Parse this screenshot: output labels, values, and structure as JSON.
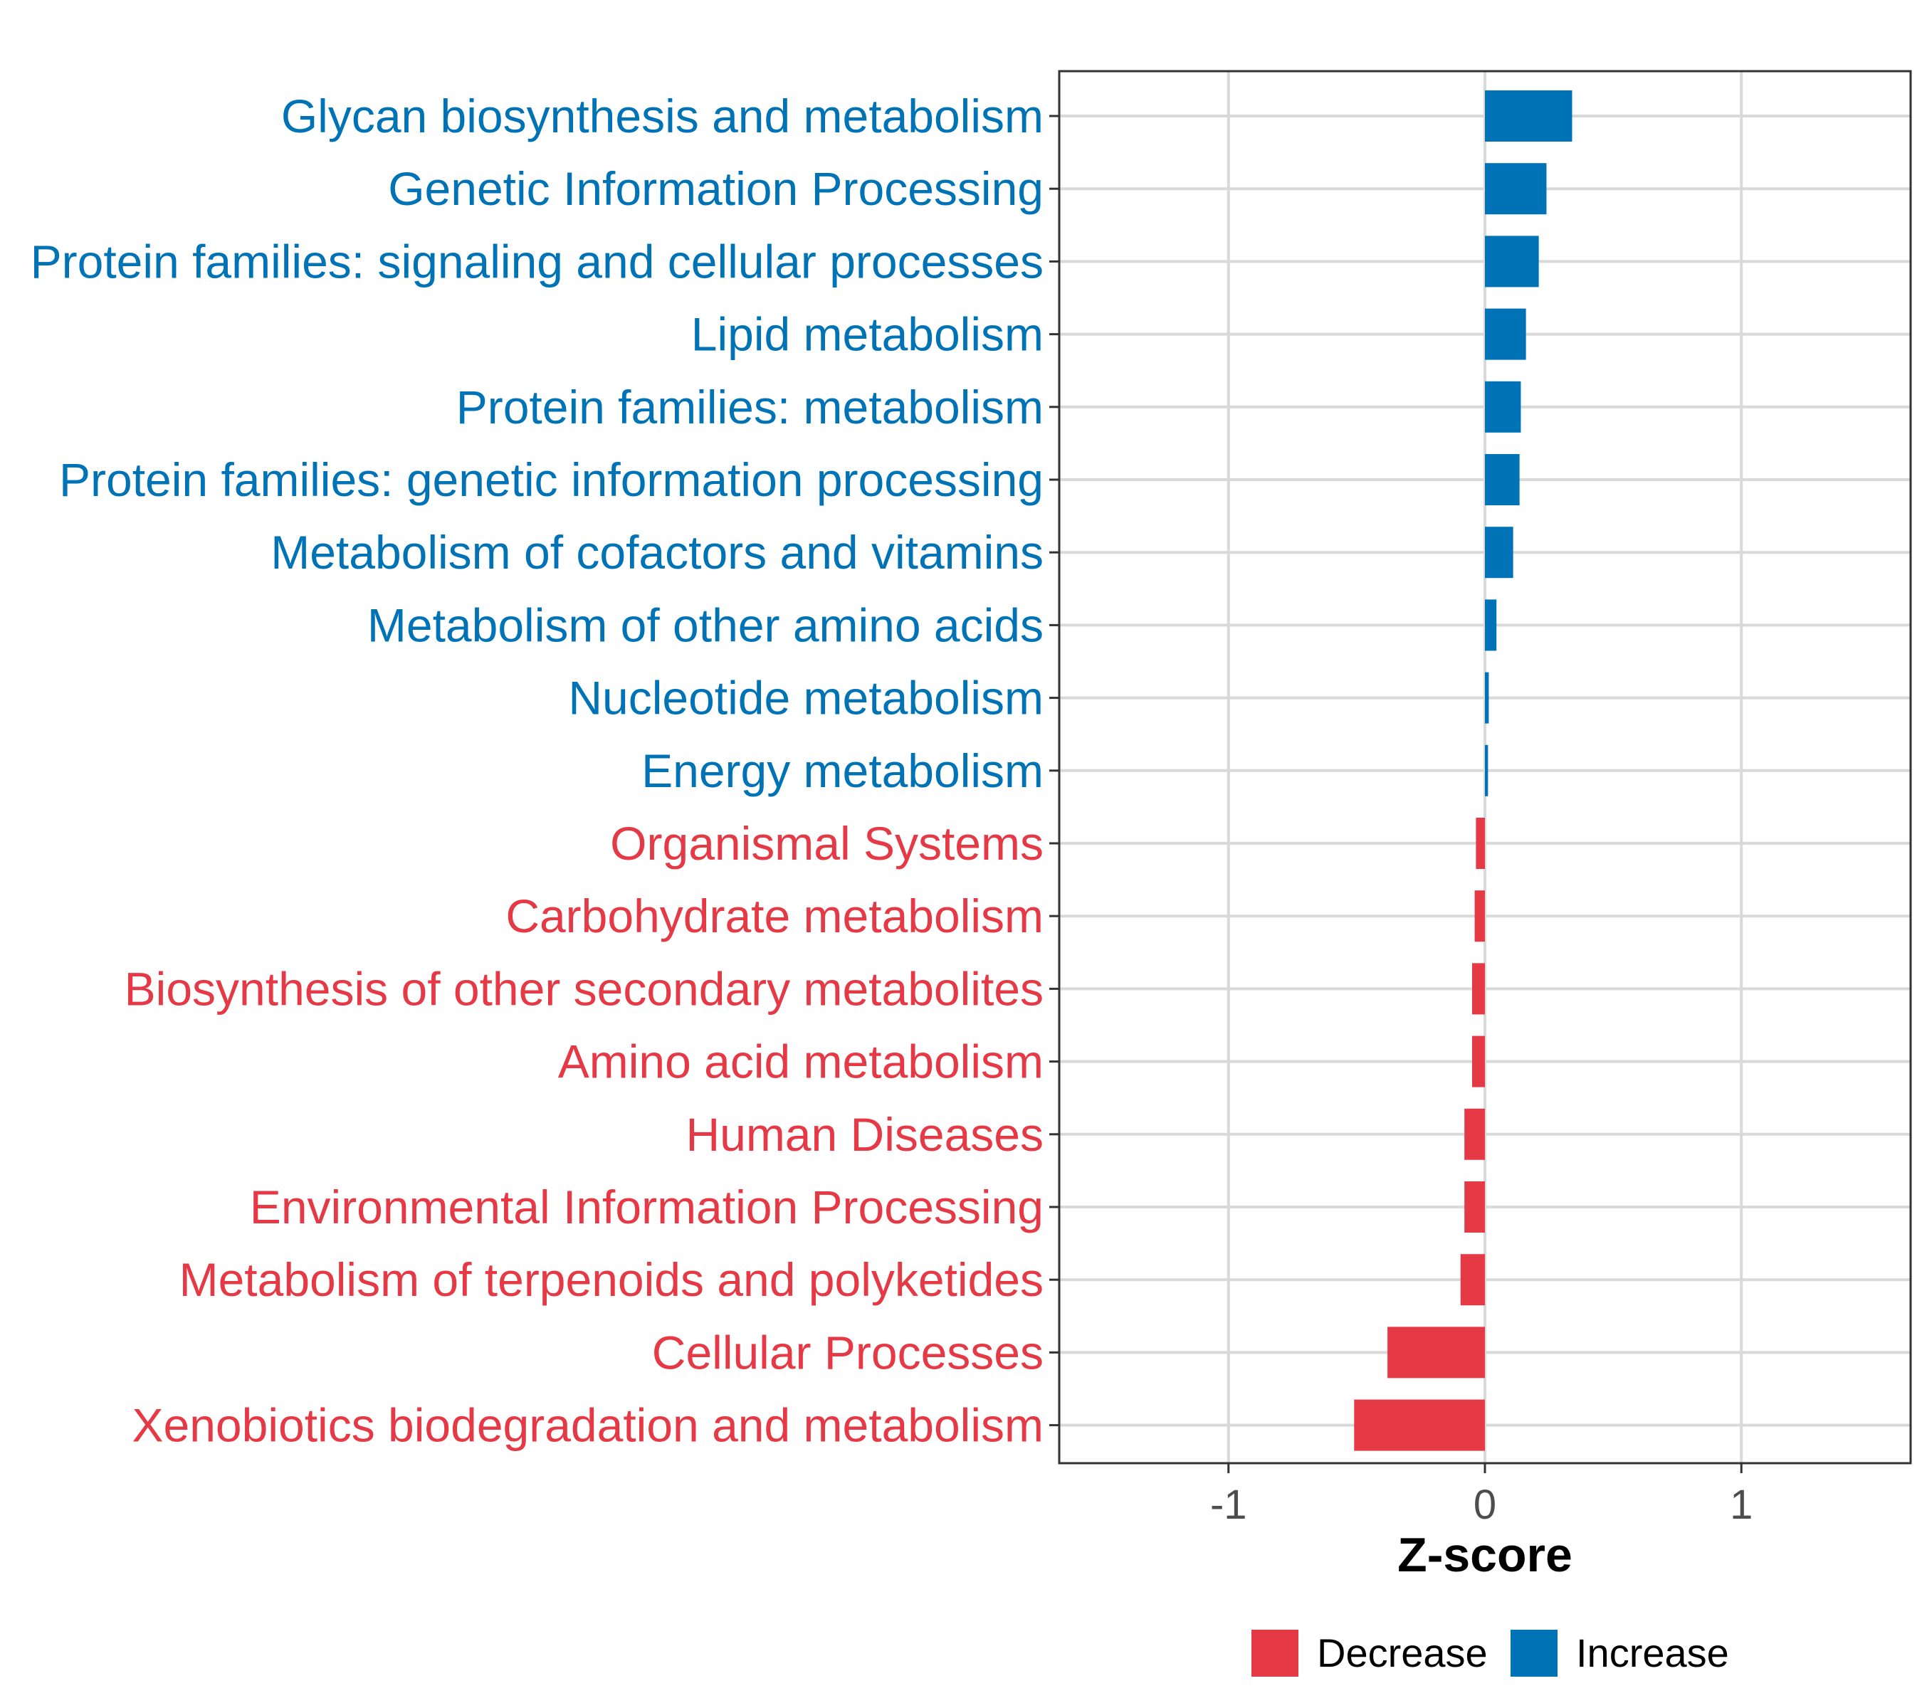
{
  "chart_data": {
    "type": "bar",
    "orientation": "horizontal",
    "categories": [
      "Glycan biosynthesis and metabolism",
      "Genetic Information Processing",
      "Protein families: signaling and cellular processes",
      "Lipid metabolism",
      "Protein families: metabolism",
      "Protein families: genetic information processing",
      "Metabolism of cofactors and vitamins",
      "Metabolism of other amino acids",
      "Nucleotide metabolism",
      "Energy metabolism",
      "Organismal Systems",
      "Carbohydrate metabolism",
      "Biosynthesis of other secondary metabolites",
      "Amino acid metabolism",
      "Human Diseases",
      "Environmental Information Processing",
      "Metabolism of terpenoids and polyketides",
      "Cellular Processes",
      "Xenobiotics biodegradation and metabolism"
    ],
    "values": [
      0.34,
      0.24,
      0.21,
      0.16,
      0.14,
      0.135,
      0.11,
      0.045,
      0.015,
      0.012,
      -0.035,
      -0.04,
      -0.05,
      -0.05,
      -0.08,
      -0.08,
      -0.095,
      -0.38,
      -0.51
    ],
    "groups": [
      "Increase",
      "Increase",
      "Increase",
      "Increase",
      "Increase",
      "Increase",
      "Increase",
      "Increase",
      "Increase",
      "Increase",
      "Decrease",
      "Decrease",
      "Decrease",
      "Decrease",
      "Decrease",
      "Decrease",
      "Decrease",
      "Decrease",
      "Decrease"
    ],
    "title": "",
    "xlabel": "Z-score",
    "ylabel": "",
    "xlim": [
      -1.66,
      1.66
    ],
    "xticks": [
      -1,
      0,
      1
    ],
    "xtick_labels": [
      "-1",
      "0",
      "1"
    ],
    "grid": true,
    "legend": {
      "position": "bottom",
      "items": [
        {
          "label": "Decrease",
          "color": "#E63946"
        },
        {
          "label": "Increase",
          "color": "#0073B6"
        }
      ]
    },
    "colors": {
      "Decrease": "#E63946",
      "Increase": "#0073B6"
    }
  }
}
